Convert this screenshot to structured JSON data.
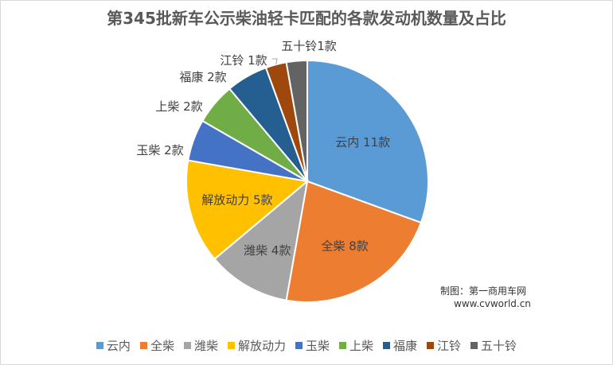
{
  "chart_data": {
    "type": "pie",
    "title": "第345批新车公示柴油轻卡匹配的各款发动机数量及占比",
    "categories": [
      "云内",
      "全柴",
      "潍柴",
      "解放动力",
      "玉柴",
      "上柴",
      "福康",
      "江铃",
      "五十铃"
    ],
    "values": [
      11,
      8,
      4,
      5,
      2,
      2,
      2,
      1,
      1
    ],
    "data_labels": [
      "云内 11款",
      "全柴 8款",
      "潍柴 4款",
      "解放动力 5款",
      "玉柴 2款",
      "上柴 2款",
      "福康 2款",
      "江铃 1款",
      "五十铃1款"
    ],
    "colors": [
      "#5b9bd5",
      "#ed7d31",
      "#a5a5a5",
      "#ffc000",
      "#4472c4",
      "#70ad47",
      "#255e91",
      "#9e480e",
      "#636363"
    ],
    "legend_position": "bottom",
    "start": "12 o'clock",
    "direction": "clockwise"
  },
  "credit": {
    "line1": "制图：第一商用车网",
    "line2": "www.cvworld.cn"
  }
}
